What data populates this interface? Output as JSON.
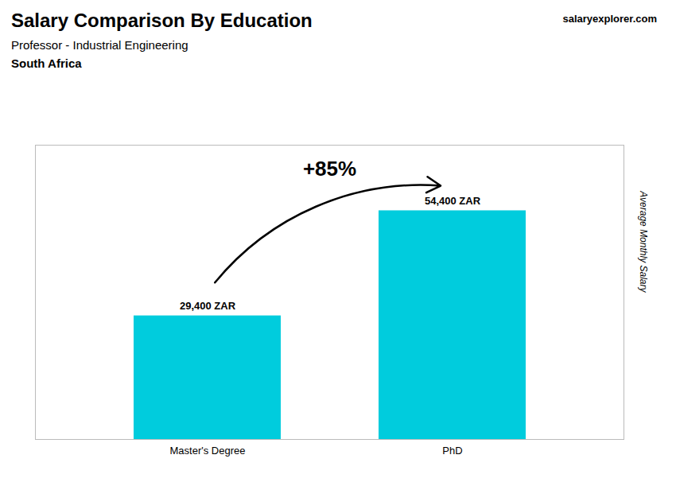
{
  "chart_data": {
    "type": "bar",
    "title": "Salary Comparison By Education",
    "subtitle": "Professor - Industrial Engineering",
    "annotations": [
      "South Africa",
      "+85%",
      "salaryexplorer.com"
    ],
    "ylabel": "Average Monthly Salary",
    "categories": [
      "Master's Degree",
      "PhD"
    ],
    "values": [
      29400,
      54400
    ],
    "value_labels": [
      "29,400 ZAR",
      "54,400 ZAR"
    ],
    "data_labels": true,
    "color": "#00ccdd",
    "ylim": [
      0,
      70000
    ],
    "tick_labels": "x",
    "grid": false
  }
}
